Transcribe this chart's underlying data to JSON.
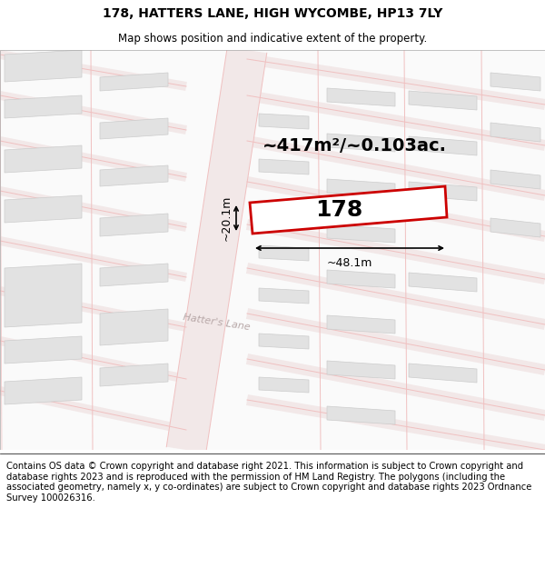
{
  "title": "178, HATTERS LANE, HIGH WYCOMBE, HP13 7LY",
  "subtitle": "Map shows position and indicative extent of the property.",
  "footer": "Contains OS data © Crown copyright and database right 2021. This information is subject to Crown copyright and database rights 2023 and is reproduced with the permission of HM Land Registry. The polygons (including the associated geometry, namely x, y co-ordinates) are subject to Crown copyright and database rights 2023 Ordnance Survey 100026316.",
  "area_label": "~417m²/~0.103ac.",
  "property_number": "178",
  "dim_width": "~48.1m",
  "dim_height": "~20.1m",
  "street_label": "Hatter's Lane",
  "map_bg": "#fafafa",
  "road_fill": "#f5eded",
  "road_line": "#f0c0c0",
  "building_fill": "#e2e2e2",
  "building_edge": "#cccccc",
  "property_fill": "#ffffff",
  "property_edge": "#cc0000",
  "title_fontsize": 10,
  "subtitle_fontsize": 8.5,
  "footer_fontsize": 7.2,
  "area_fontsize": 14,
  "number_fontsize": 18,
  "dim_fontsize": 9,
  "street_fontsize": 8
}
